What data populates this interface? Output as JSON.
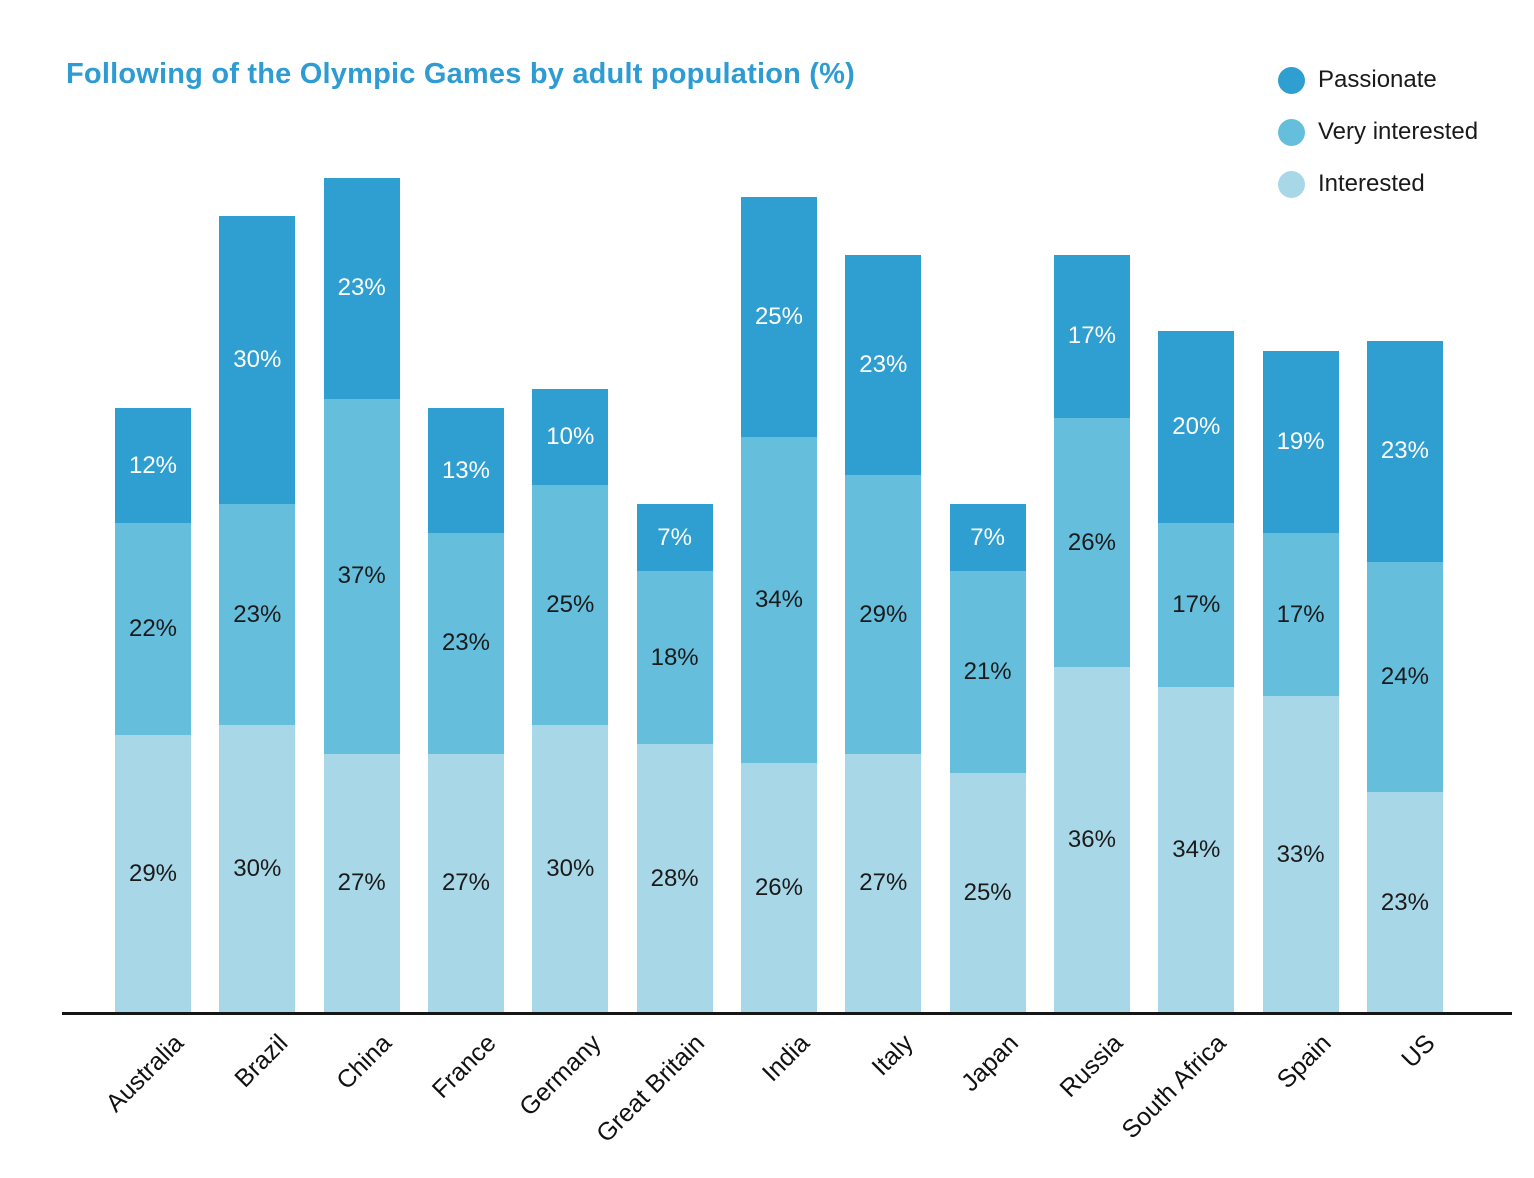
{
  "title": "Following of the Olympic Games by adult population (%)",
  "title_color": "#2E9CD3",
  "legend": {
    "position": "top-right",
    "items": [
      {
        "label": "Passionate",
        "color": "#2F9ED0"
      },
      {
        "label": "Very interested",
        "color": "#64BEDC"
      },
      {
        "label": "Interested",
        "color": "#A8D8E8"
      }
    ]
  },
  "chart_data": {
    "type": "bar",
    "stacked": true,
    "title": "Following of the Olympic Games by adult population (%)",
    "xlabel": "",
    "ylabel": "",
    "value_suffix": "%",
    "ylim": [
      0,
      90
    ],
    "grid": false,
    "legend_position": "top-right",
    "categories": [
      "Australia",
      "Brazil",
      "China",
      "France",
      "Germany",
      "Great Britain",
      "India",
      "Italy",
      "Japan",
      "Russia",
      "South Africa",
      "Spain",
      "US"
    ],
    "series": [
      {
        "name": "Interested",
        "color": "#A8D8E8",
        "label_color": "#1A1A1A",
        "values": [
          29,
          30,
          27,
          27,
          30,
          28,
          26,
          27,
          25,
          36,
          34,
          33,
          23
        ]
      },
      {
        "name": "Very interested",
        "color": "#64BEDC",
        "label_color": "#1A1A1A",
        "values": [
          22,
          23,
          37,
          23,
          25,
          18,
          34,
          29,
          21,
          26,
          17,
          17,
          24
        ]
      },
      {
        "name": "Passionate",
        "color": "#2F9ED0",
        "label_color": "#FFFFFF",
        "values": [
          12,
          30,
          23,
          13,
          10,
          7,
          25,
          23,
          7,
          17,
          20,
          19,
          23
        ]
      }
    ]
  }
}
